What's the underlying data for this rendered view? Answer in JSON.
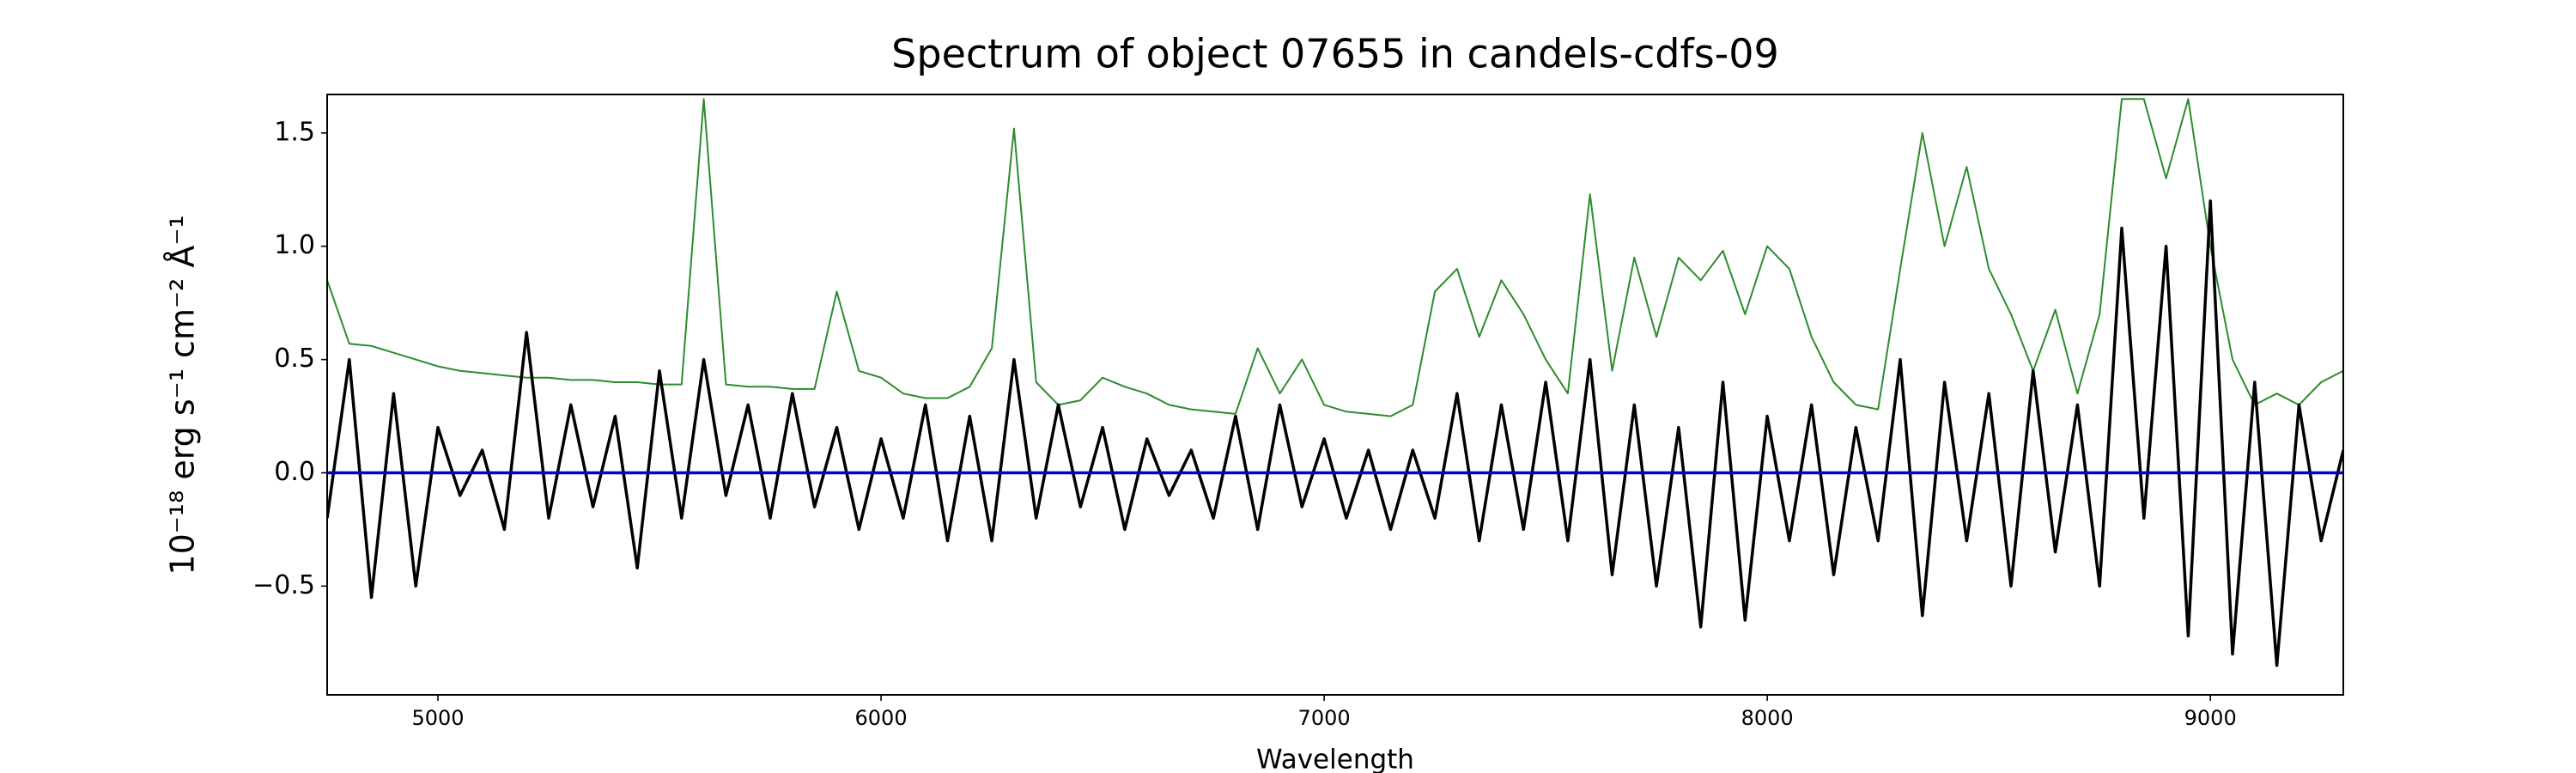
{
  "chart_data": {
    "type": "line",
    "title": "Spectrum of object 07655 in candels-cdfs-09",
    "xlabel": "Wavelength",
    "ylabel": "10⁻¹⁸ erg s⁻¹ cm⁻² Å⁻¹",
    "xlim": [
      4750,
      9300
    ],
    "ylim": [
      -0.98,
      1.67
    ],
    "xticks": [
      5000,
      6000,
      7000,
      8000,
      9000
    ],
    "yticks": [
      {
        "value": -0.5,
        "label": "−0.5"
      },
      {
        "value": 0,
        "label": "0.0"
      },
      0.5,
      {
        "value": 1,
        "label": "1.0"
      },
      1.5
    ],
    "grid": false,
    "x": [
      4750,
      4800,
      4850,
      4900,
      4950,
      5000,
      5050,
      5100,
      5150,
      5200,
      5250,
      5300,
      5350,
      5400,
      5450,
      5500,
      5550,
      5600,
      5650,
      5700,
      5750,
      5800,
      5850,
      5900,
      5950,
      6000,
      6050,
      6100,
      6150,
      6200,
      6250,
      6300,
      6350,
      6400,
      6450,
      6500,
      6550,
      6600,
      6650,
      6700,
      6750,
      6800,
      6850,
      6900,
      6950,
      7000,
      7050,
      7100,
      7150,
      7200,
      7250,
      7300,
      7350,
      7400,
      7450,
      7500,
      7550,
      7600,
      7650,
      7700,
      7750,
      7800,
      7850,
      7900,
      7950,
      8000,
      8050,
      8100,
      8150,
      8200,
      8250,
      8300,
      8350,
      8400,
      8450,
      8500,
      8550,
      8600,
      8650,
      8700,
      8750,
      8800,
      8850,
      8900,
      8950,
      9000,
      9050,
      9100,
      9150,
      9200,
      9250,
      9300
    ],
    "series": [
      {
        "color": "#2e8b2e",
        "width": 2,
        "values": [
          0.85,
          0.57,
          0.56,
          0.53,
          0.5,
          0.47,
          0.45,
          0.44,
          0.43,
          0.42,
          0.42,
          0.41,
          0.41,
          0.4,
          0.4,
          0.39,
          0.39,
          1.65,
          0.39,
          0.38,
          0.38,
          0.37,
          0.37,
          0.8,
          0.45,
          0.42,
          0.35,
          0.33,
          0.33,
          0.38,
          0.55,
          1.52,
          0.4,
          0.3,
          0.32,
          0.42,
          0.38,
          0.35,
          0.3,
          0.28,
          0.27,
          0.26,
          0.55,
          0.35,
          0.5,
          0.3,
          0.27,
          0.26,
          0.25,
          0.3,
          0.8,
          0.9,
          0.6,
          0.85,
          0.7,
          0.5,
          0.35,
          1.23,
          0.45,
          0.95,
          0.6,
          0.95,
          0.85,
          0.98,
          0.7,
          1.0,
          0.9,
          0.6,
          0.4,
          0.3,
          0.28,
          0.9,
          1.5,
          1.0,
          1.35,
          0.9,
          0.7,
          0.45,
          0.72,
          0.35,
          0.7,
          1.65,
          1.65,
          1.3,
          1.65,
          1.0,
          0.5,
          0.3,
          0.35,
          0.3,
          0.4,
          0.45
        ]
      },
      {
        "color": "#000000",
        "width": 3.5,
        "values": [
          -0.2,
          0.5,
          -0.55,
          0.35,
          -0.5,
          0.2,
          -0.1,
          0.1,
          -0.25,
          0.62,
          -0.2,
          0.3,
          -0.15,
          0.25,
          -0.42,
          0.45,
          -0.2,
          0.5,
          -0.1,
          0.3,
          -0.2,
          0.35,
          -0.15,
          0.2,
          -0.25,
          0.15,
          -0.2,
          0.3,
          -0.3,
          0.25,
          -0.3,
          0.5,
          -0.2,
          0.3,
          -0.15,
          0.2,
          -0.25,
          0.15,
          -0.1,
          0.1,
          -0.2,
          0.25,
          -0.25,
          0.3,
          -0.15,
          0.15,
          -0.2,
          0.1,
          -0.25,
          0.1,
          -0.2,
          0.35,
          -0.3,
          0.3,
          -0.25,
          0.4,
          -0.3,
          0.5,
          -0.45,
          0.3,
          -0.5,
          0.2,
          -0.68,
          0.4,
          -0.65,
          0.25,
          -0.3,
          0.3,
          -0.45,
          0.2,
          -0.3,
          0.5,
          -0.63,
          0.4,
          -0.3,
          0.35,
          -0.5,
          0.45,
          -0.35,
          0.3,
          -0.5,
          1.08,
          -0.2,
          1.0,
          -0.72,
          1.2,
          -0.8,
          0.4,
          -0.85,
          0.3,
          -0.3,
          0.1
        ]
      }
    ],
    "hlines": [
      {
        "y": 0,
        "color": "#0000cc"
      }
    ]
  }
}
